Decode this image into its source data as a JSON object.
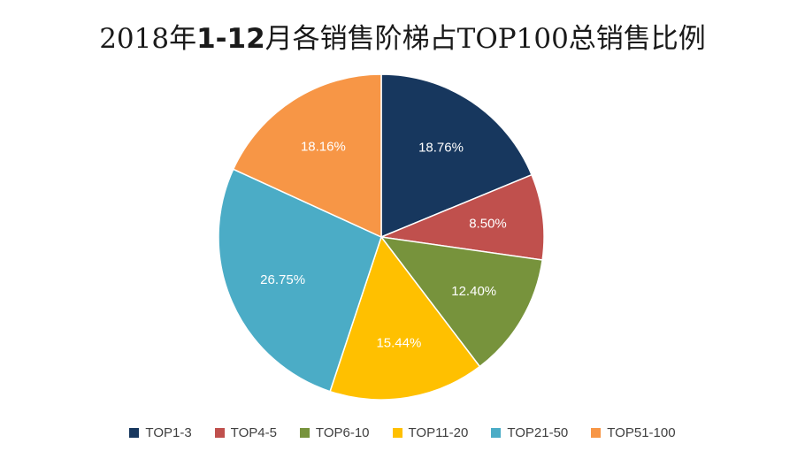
{
  "title": {
    "prefix": "2018年",
    "bold": "1-12",
    "suffix": "月各销售阶梯占TOP100总销售比例"
  },
  "chart_data": {
    "type": "pie",
    "title": "2018年1-12月各销售阶梯占TOP100总销售比例",
    "categories": [
      "TOP1-3",
      "TOP4-5",
      "TOP6-10",
      "TOP11-20",
      "TOP21-50",
      "TOP51-100"
    ],
    "values": [
      18.76,
      8.5,
      12.4,
      15.44,
      26.75,
      18.16
    ],
    "labels": [
      "18.76%",
      "8.50%",
      "12.40%",
      "15.44%",
      "26.75%",
      "18.16%"
    ],
    "colors": [
      "#17375e",
      "#c0504d",
      "#77933c",
      "#ffc000",
      "#4bacc6",
      "#f79646"
    ],
    "start_angle_deg": 0,
    "direction": "clockwise",
    "legend_position": "bottom"
  }
}
